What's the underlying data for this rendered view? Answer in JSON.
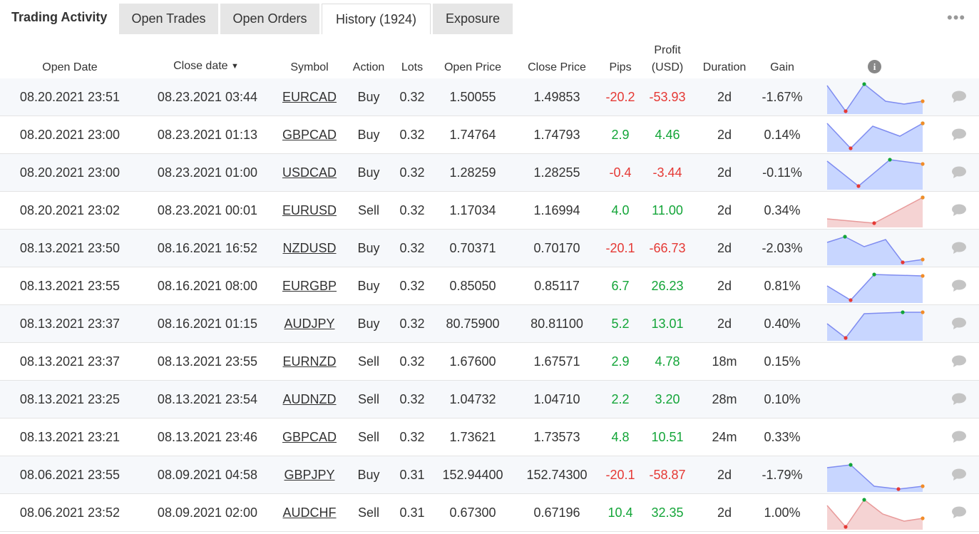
{
  "tabs": {
    "title": "Trading Activity",
    "items": [
      "Open Trades",
      "Open Orders",
      "History (1924)",
      "Exposure"
    ],
    "more": "•••"
  },
  "columns": {
    "open_date": "Open Date",
    "close_date": "Close date",
    "sort_indicator": "▼",
    "symbol": "Symbol",
    "action": "Action",
    "lots": "Lots",
    "open_price": "Open Price",
    "close_price": "Close Price",
    "pips": "Pips",
    "profit_line1": "Profit",
    "profit_line2": "(USD)",
    "duration": "Duration",
    "gain": "Gain",
    "info": "i"
  },
  "colors": {
    "positive": "#13a538",
    "negative": "#e53935",
    "spark_blue_fill": "#c8d6ff",
    "spark_blue_line": "#7f8cf0",
    "spark_red_fill": "#f5d3d3",
    "spark_red_line": "#e89a9a"
  },
  "rows": [
    {
      "open_date": "08.20.2021 23:51",
      "close_date": "08.23.2021 03:44",
      "symbol": "EURCAD",
      "action": "Buy",
      "lots": "0.32",
      "open_price": "1.50055",
      "close_price": "1.49853",
      "pips": "-20.2",
      "profit": "-53.93",
      "duration": "2d",
      "gain": "-1.67%",
      "positive": false,
      "spark": "blue"
    },
    {
      "open_date": "08.20.2021 23:00",
      "close_date": "08.23.2021 01:13",
      "symbol": "GBPCAD",
      "action": "Buy",
      "lots": "0.32",
      "open_price": "1.74764",
      "close_price": "1.74793",
      "pips": "2.9",
      "profit": "4.46",
      "duration": "2d",
      "gain": "0.14%",
      "positive": true,
      "spark": "blue"
    },
    {
      "open_date": "08.20.2021 23:00",
      "close_date": "08.23.2021 01:00",
      "symbol": "USDCAD",
      "action": "Buy",
      "lots": "0.32",
      "open_price": "1.28259",
      "close_price": "1.28255",
      "pips": "-0.4",
      "profit": "-3.44",
      "duration": "2d",
      "gain": "-0.11%",
      "positive": false,
      "spark": "blue"
    },
    {
      "open_date": "08.20.2021 23:02",
      "close_date": "08.23.2021 00:01",
      "symbol": "EURUSD",
      "action": "Sell",
      "lots": "0.32",
      "open_price": "1.17034",
      "close_price": "1.16994",
      "pips": "4.0",
      "profit": "11.00",
      "duration": "2d",
      "gain": "0.34%",
      "positive": true,
      "spark": "red"
    },
    {
      "open_date": "08.13.2021 23:50",
      "close_date": "08.16.2021 16:52",
      "symbol": "NZDUSD",
      "action": "Buy",
      "lots": "0.32",
      "open_price": "0.70371",
      "close_price": "0.70170",
      "pips": "-20.1",
      "profit": "-66.73",
      "duration": "2d",
      "gain": "-2.03%",
      "positive": false,
      "spark": "blue"
    },
    {
      "open_date": "08.13.2021 23:55",
      "close_date": "08.16.2021 08:00",
      "symbol": "EURGBP",
      "action": "Buy",
      "lots": "0.32",
      "open_price": "0.85050",
      "close_price": "0.85117",
      "pips": "6.7",
      "profit": "26.23",
      "duration": "2d",
      "gain": "0.81%",
      "positive": true,
      "spark": "blue"
    },
    {
      "open_date": "08.13.2021 23:37",
      "close_date": "08.16.2021 01:15",
      "symbol": "AUDJPY",
      "action": "Buy",
      "lots": "0.32",
      "open_price": "80.75900",
      "close_price": "80.81100",
      "pips": "5.2",
      "profit": "13.01",
      "duration": "2d",
      "gain": "0.40%",
      "positive": true,
      "spark": "blue"
    },
    {
      "open_date": "08.13.2021 23:37",
      "close_date": "08.13.2021 23:55",
      "symbol": "EURNZD",
      "action": "Sell",
      "lots": "0.32",
      "open_price": "1.67600",
      "close_price": "1.67571",
      "pips": "2.9",
      "profit": "4.78",
      "duration": "18m",
      "gain": "0.15%",
      "positive": true,
      "spark": "none"
    },
    {
      "open_date": "08.13.2021 23:25",
      "close_date": "08.13.2021 23:54",
      "symbol": "AUDNZD",
      "action": "Sell",
      "lots": "0.32",
      "open_price": "1.04732",
      "close_price": "1.04710",
      "pips": "2.2",
      "profit": "3.20",
      "duration": "28m",
      "gain": "0.10%",
      "positive": true,
      "spark": "none"
    },
    {
      "open_date": "08.13.2021 23:21",
      "close_date": "08.13.2021 23:46",
      "symbol": "GBPCAD",
      "action": "Sell",
      "lots": "0.32",
      "open_price": "1.73621",
      "close_price": "1.73573",
      "pips": "4.8",
      "profit": "10.51",
      "duration": "24m",
      "gain": "0.33%",
      "positive": true,
      "spark": "none"
    },
    {
      "open_date": "08.06.2021 23:55",
      "close_date": "08.09.2021 04:58",
      "symbol": "GBPJPY",
      "action": "Buy",
      "lots": "0.31",
      "open_price": "152.94400",
      "close_price": "152.74300",
      "pips": "-20.1",
      "profit": "-58.87",
      "duration": "2d",
      "gain": "-1.79%",
      "positive": false,
      "spark": "blue"
    },
    {
      "open_date": "08.06.2021 23:52",
      "close_date": "08.09.2021 02:00",
      "symbol": "AUDCHF",
      "action": "Sell",
      "lots": "0.31",
      "open_price": "0.67300",
      "close_price": "0.67196",
      "pips": "10.4",
      "profit": "32.35",
      "duration": "2d",
      "gain": "1.00%",
      "positive": true,
      "spark": "red"
    }
  ]
}
